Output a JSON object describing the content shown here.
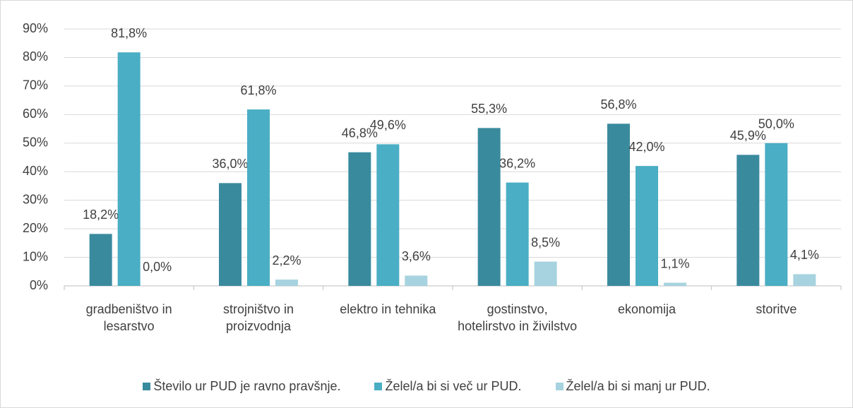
{
  "chart_data": {
    "type": "bar",
    "categories": [
      "gradbeništvo in lesarstvo",
      "strojništvo in proizvodnja",
      "elektro in tehnika",
      "gostinstvo, hotelirstvo in živilstvo",
      "ekonomija",
      "storitve"
    ],
    "series": [
      {
        "name": "Število ur PUD je ravno pravšnje.",
        "color": "#3a8a9e",
        "values": [
          18.2,
          36.0,
          46.8,
          55.3,
          56.8,
          45.9
        ],
        "value_labels": [
          "18,2%",
          "36,0%",
          "46,8%",
          "55,3%",
          "56,8%",
          "45,9%"
        ]
      },
      {
        "name": "Želel/a bi si več ur PUD.",
        "color": "#4aaec4",
        "values": [
          81.8,
          61.8,
          49.6,
          36.2,
          42.0,
          50.0
        ],
        "value_labels": [
          "81,8%",
          "61,8%",
          "49,6%",
          "36,2%",
          "42,0%",
          "50,0%"
        ]
      },
      {
        "name": "Želel/a bi si manj ur PUD.",
        "color": "#a6d3df",
        "values": [
          0.0,
          2.2,
          3.6,
          8.5,
          1.1,
          4.1
        ],
        "value_labels": [
          "0,0%",
          "2,2%",
          "3,6%",
          "8,5%",
          "1,1%",
          "4,1%"
        ]
      }
    ],
    "ylim": [
      0,
      90
    ],
    "yticks": [
      {
        "value": 0,
        "label": "0%"
      },
      {
        "value": 10,
        "label": "10%"
      },
      {
        "value": 20,
        "label": "20%"
      },
      {
        "value": 30,
        "label": "30%"
      },
      {
        "value": 40,
        "label": "40%"
      },
      {
        "value": 50,
        "label": "50%"
      },
      {
        "value": 60,
        "label": "60%"
      },
      {
        "value": 70,
        "label": "70%"
      },
      {
        "value": 80,
        "label": "80%"
      },
      {
        "value": 90,
        "label": "90%"
      }
    ],
    "grid": true,
    "legend": "bottom"
  }
}
